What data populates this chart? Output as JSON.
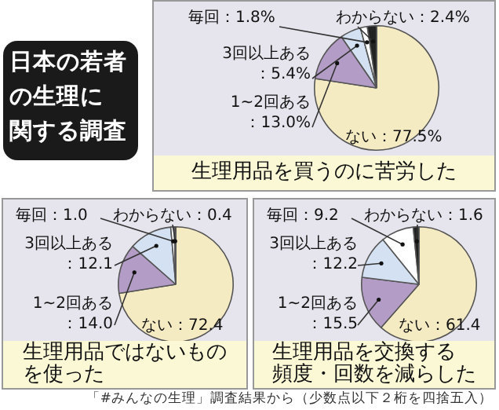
{
  "chart_data": [
    {
      "type": "other",
      "title": "日本の若者の生理に関する調査",
      "annotations": [
        "「#みんなの生理」調査結果から（少数点以下２桁を四捨五入）"
      ]
    },
    {
      "type": "pie",
      "title": "生理用品を買うのに苦労した",
      "categories": [
        "ない",
        "1~2回ある",
        "3回以上ある",
        "毎回",
        "わからない"
      ],
      "values": [
        77.5,
        13.0,
        5.4,
        1.8,
        2.4
      ],
      "colors": [
        "#f5ebc3",
        "#b39cc6",
        "#d3e1f3",
        "#ffffff",
        "#222222"
      ],
      "value_labels": [
        "：77.5%",
        "：13.0%",
        "：5.4%",
        "：1.8%",
        "：2.4%"
      ]
    },
    {
      "type": "pie",
      "title": "生理用品ではないものを使った",
      "categories": [
        "ない",
        "1~2回ある",
        "3回以上ある",
        "毎回",
        "わからない"
      ],
      "values": [
        72.4,
        14.0,
        12.1,
        1.0,
        0.4
      ],
      "colors": [
        "#f5ebc3",
        "#b39cc6",
        "#d3e1f3",
        "#ffffff",
        "#222222"
      ],
      "value_labels": [
        "：72.4",
        "：14.0",
        "：12.1",
        "：1.0",
        "：0.4"
      ]
    },
    {
      "type": "pie",
      "title": "生理用品を交換する頻度・回数を減らした",
      "categories": [
        "ない",
        "1~2回ある",
        "3回以上ある",
        "毎回",
        "わからない"
      ],
      "values": [
        61.4,
        15.5,
        12.2,
        9.2,
        1.6
      ],
      "colors": [
        "#f5ebc3",
        "#b39cc6",
        "#d3e1f3",
        "#ffffff",
        "#222222"
      ],
      "value_labels": [
        "：61.4",
        "：15.5",
        "：12.2",
        "：9.2",
        "：1.6"
      ]
    }
  ]
}
